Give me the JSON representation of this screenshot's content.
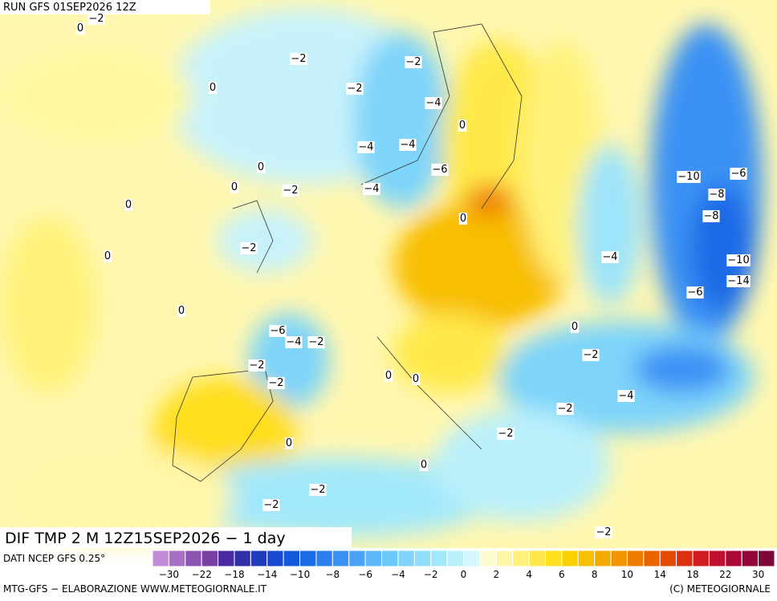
{
  "header": {
    "run": "RUN GFS 01SEP2026 12Z"
  },
  "title": "DIF TMP 2 M 12Z15SEP2026 − 1 day",
  "source": "DATI NCEP GFS 0.25°",
  "scale": {
    "ticks": [
      "−30",
      "−22",
      "−18",
      "−14",
      "−10",
      "−8",
      "−6",
      "−4",
      "−2",
      "0",
      "2",
      "4",
      "6",
      "8",
      "10",
      "14",
      "18",
      "22",
      "30"
    ],
    "colors": [
      "#c48bd8",
      "#a86fc6",
      "#8e56b4",
      "#7a3fa2",
      "#4a2aa0",
      "#2f2fa8",
      "#1f3cc0",
      "#1848d0",
      "#1458dc",
      "#1c6ae6",
      "#2a7ef0",
      "#3a92f4",
      "#4aa4f6",
      "#5cb6f8",
      "#6cc6fa",
      "#7ed4fa",
      "#8edefa",
      "#a2e8fb",
      "#baf0fb",
      "#d4f8fb",
      "#fffbd0",
      "#fff7a8",
      "#fff27a",
      "#ffe94a",
      "#ffde1e",
      "#fcd000",
      "#f8be00",
      "#f5aa00",
      "#f29400",
      "#ee7c00",
      "#ea6200",
      "#e44a00",
      "#dc3010",
      "#d01c20",
      "#c01030",
      "#aa0838",
      "#94063a",
      "#7e063a"
    ]
  },
  "contour_labels": [
    "−2",
    "0",
    "−2",
    "0",
    "−2",
    "−2",
    "−4",
    "0",
    "−4",
    "−4",
    "−6",
    "−4",
    "0",
    "−2",
    "0",
    "0",
    "0",
    "−2",
    "0",
    "0",
    "−2",
    "−2",
    "−4",
    "−2",
    "−6",
    "0",
    "0",
    "−4",
    "−10",
    "−8",
    "−6",
    "−14",
    "−10",
    "−8",
    "−6",
    "−2",
    "0",
    "−2",
    "−4",
    "−2",
    "0",
    "−2",
    "0",
    "−2",
    "−2"
  ],
  "footer": {
    "left": "MTG-GFS − ELABORAZIONE WWW.METEOGIORNALE.IT",
    "right": "(C) METEOGIORNALE"
  }
}
